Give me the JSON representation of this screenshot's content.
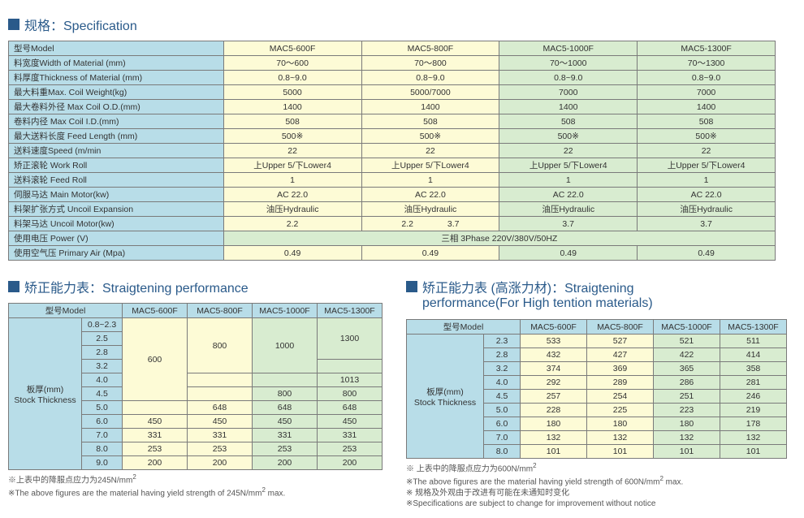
{
  "colors": {
    "header_bg": "#b8dde8",
    "col_a_bg": "#fdfbd6",
    "col_b_bg": "#d8ecd0",
    "border": "#7a7a7a",
    "title": "#2a5a8a"
  },
  "spec": {
    "title": "规格：Specification",
    "model_label": "型号Model",
    "models": [
      "MAC5-600F",
      "MAC5-800F",
      "MAC5-1000F",
      "MAC5-1300F"
    ],
    "rows": [
      {
        "label": "料宽度Width of Material (mm)",
        "vals": [
          "70～600",
          "70～800",
          "70～1000",
          "70～1300"
        ]
      },
      {
        "label": "料厚度Thickness of Material (mm)",
        "vals": [
          "0.8~9.0",
          "0.8~9.0",
          "0.8~9.0",
          "0.8~9.0"
        ]
      },
      {
        "label": "最大料重Max. Coil Weight(kg)",
        "vals": [
          "5000",
          "5000/7000",
          "7000",
          "7000"
        ]
      },
      {
        "label": "最大卷料外径  Max Coil O.D.(mm)",
        "vals": [
          "1400",
          "1400",
          "1400",
          "1400"
        ]
      },
      {
        "label": "卷料内径  Max Coil I.D.(mm)",
        "vals": [
          "508",
          "508",
          "508",
          "508"
        ]
      },
      {
        "label": "最大送料长度 Feed Length (mm)",
        "vals": [
          "500※",
          "500※",
          "500※",
          "500※"
        ]
      },
      {
        "label": "送料速度Speed (m/min",
        "vals": [
          "22",
          "22",
          "22",
          "22"
        ]
      },
      {
        "label": "矫正滚轮  Work Roll",
        "vals": [
          "上Upper 5/下Lower4",
          "上Upper 5/下Lower4",
          "上Upper 5/下Lower4",
          "上Upper 5/下Lower4"
        ]
      },
      {
        "label": "送料滚轮  Feed Roll",
        "vals": [
          "1",
          "1",
          "1",
          "1"
        ]
      },
      {
        "label": "伺服马达  Main Motor(kw)",
        "vals": [
          "AC 22.0",
          "AC 22.0",
          "AC 22.0",
          "AC 22.0"
        ]
      },
      {
        "label": "料架扩张方式  Uncoil Expansion",
        "vals": [
          "油压Hydraulic",
          "油压Hydraulic",
          "油压Hydraulic",
          "油压Hydraulic"
        ]
      },
      {
        "label": "料架马达  Uncoil Motor(kw)",
        "vals": [
          "2.2",
          "2.2　　　　3.7",
          "3.7",
          "3.7"
        ]
      }
    ],
    "power_label": "使用电压  Power (V)",
    "power_val": "三相 3Phase 220V/380V/50HZ",
    "air_label": "使用空气压  Primary Air (Mpa)",
    "air_vals": [
      "0.49",
      "0.49",
      "0.49",
      "0.49"
    ]
  },
  "perf1": {
    "title": "矫正能力表：Straigtening performance",
    "model_label": "型号Model",
    "thick_label_cn": "板厚(mm)",
    "thick_label_en": "Stock Thickness",
    "models": [
      "MAC5-600F",
      "MAC5-800F",
      "MAC5-1000F",
      "MAC5-1300F"
    ],
    "thicknesses": [
      "0.8~2.3",
      "2.5",
      "2.8",
      "3.2",
      "4.0",
      "4.5",
      "5.0",
      "6.0",
      "7.0",
      "8.0",
      "9.0"
    ],
    "v600": "600",
    "v800": "800",
    "v1000": "1000",
    "v1300": "1300",
    "v1013": "1013",
    "v800b": "800",
    "r50": [
      "",
      "648",
      "648",
      "648"
    ],
    "r60": [
      "450",
      "450",
      "450",
      "450"
    ],
    "r70": [
      "331",
      "331",
      "331",
      "331"
    ],
    "r80": [
      "253",
      "253",
      "253",
      "253"
    ],
    "r90": [
      "200",
      "200",
      "200",
      "200"
    ],
    "note_cn": "※上表中的降服点应力为245N/mm",
    "note_en": "※The above figures are the material having yield strength of 245N/mm"
  },
  "perf2": {
    "title_cn": "矫正能力表 (高涨力材)：Straigtening",
    "title_en": "performance(For High tention materials)",
    "model_label": "型号Model",
    "thick_label_cn": "板厚(mm)",
    "thick_label_en": "Stock Thickness",
    "models": [
      "MAC5-600F",
      "MAC5-800F",
      "MAC5-1000F",
      "MAC5-1300F"
    ],
    "rows": [
      {
        "t": "2.3",
        "v": [
          "533",
          "527",
          "521",
          "511"
        ]
      },
      {
        "t": "2.8",
        "v": [
          "432",
          "427",
          "422",
          "414"
        ]
      },
      {
        "t": "3.2",
        "v": [
          "374",
          "369",
          "365",
          "358"
        ]
      },
      {
        "t": "4.0",
        "v": [
          "292",
          "289",
          "286",
          "281"
        ]
      },
      {
        "t": "4.5",
        "v": [
          "257",
          "254",
          "251",
          "246"
        ]
      },
      {
        "t": "5.0",
        "v": [
          "228",
          "225",
          "223",
          "219"
        ]
      },
      {
        "t": "6.0",
        "v": [
          "180",
          "180",
          "180",
          "178"
        ]
      },
      {
        "t": "7.0",
        "v": [
          "132",
          "132",
          "132",
          "132"
        ]
      },
      {
        "t": "8.0",
        "v": [
          "101",
          "101",
          "101",
          "101"
        ]
      }
    ],
    "note1_cn": "※ 上表中的降服点应力为600N/mm",
    "note1_en": "※The above figures are the material having yield strength of 600N/mm",
    "note2_cn": "※ 规格及外观由于改进有可能在未通知时变化",
    "note2_en": "※Specifications are subject to change for improvement without notice",
    "max_suffix": " max."
  }
}
